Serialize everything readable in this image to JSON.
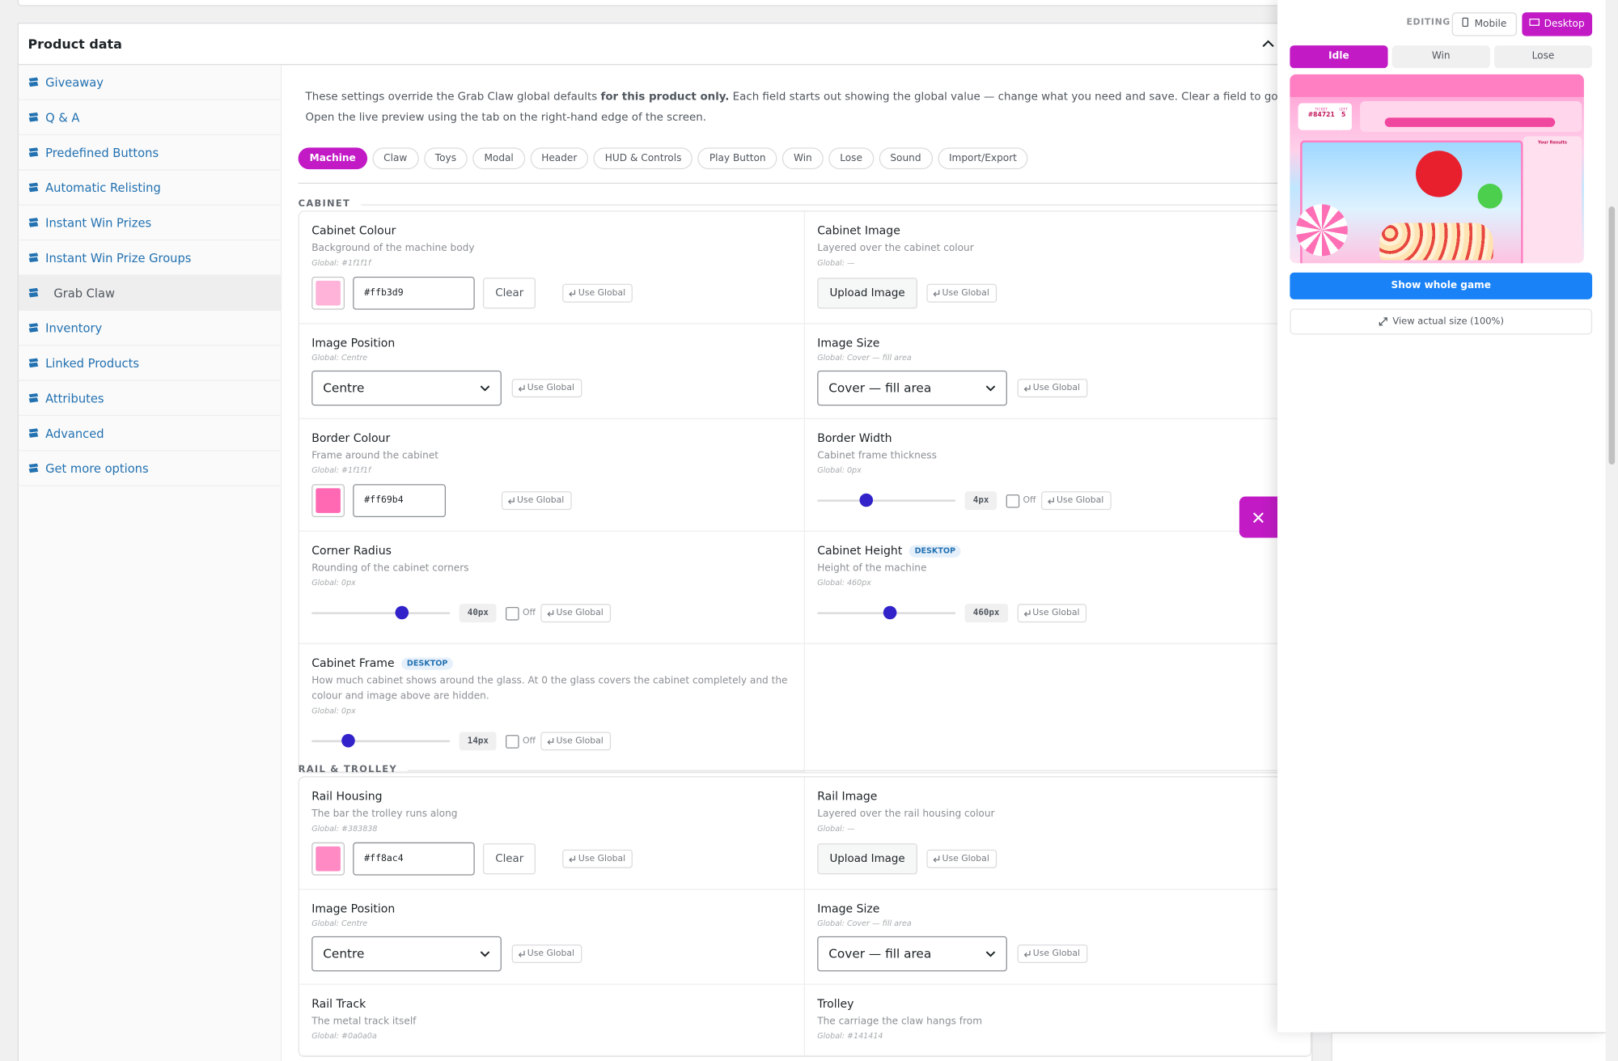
{
  "panel": {
    "title": "Product data"
  },
  "sidebar": {
    "items": [
      "Giveaway",
      "Q & A",
      "Predefined Buttons",
      "Automatic Relisting",
      "Instant Win Prizes",
      "Instant Win Prize Groups",
      "Grab Claw",
      "Inventory",
      "Linked Products",
      "Attributes",
      "Advanced",
      "Get more options"
    ],
    "active": 6
  },
  "intro": {
    "before": "These settings override the Grab Claw global defaults ",
    "bold": "for this product only.",
    "after": " Each field starts out showing the global value — change what you need and save. Clear a field to go back to inheriting the global setting.",
    "line2": "Open the live preview using the tab on the right-hand edge of the screen."
  },
  "tabs": {
    "items": [
      "Machine",
      "Claw",
      "Toys",
      "Modal",
      "Header",
      "HUD & Controls",
      "Play Button",
      "Win",
      "Lose",
      "Sound",
      "Import/Export"
    ],
    "active": 0
  },
  "ui": {
    "use_global": "Use Global",
    "clear": "Clear",
    "upload": "Upload Image",
    "off": "Off"
  },
  "sections": [
    {
      "title": "CABINET",
      "fields": [
        {
          "label": "Cabinet Colour",
          "description": "Background of the machine body",
          "global": "Global: #1f1f1f",
          "control": {
            "kind": "color",
            "value": "#ffb3d9",
            "clear": true
          }
        },
        {
          "label": "Cabinet Image",
          "description": "Layered over the cabinet colour",
          "global": "Global: —",
          "control": {
            "kind": "image"
          }
        },
        {
          "label": "Image Position",
          "global": "Global: Centre",
          "control": {
            "kind": "select",
            "value": "Centre"
          }
        },
        {
          "label": "Image Size",
          "global": "Global: Cover — fill area",
          "control": {
            "kind": "select",
            "value": "Cover — fill area"
          }
        },
        {
          "label": "Border Colour",
          "description": "Frame around the cabinet",
          "global": "Global: #1f1f1f",
          "control": {
            "kind": "color",
            "value": "#ff69b4",
            "clear": false
          }
        },
        {
          "label": "Border Width",
          "description": "Cabinet frame thickness",
          "global": "Global: 0px",
          "control": {
            "kind": "range",
            "value": "4px",
            "off": true
          }
        },
        {
          "label": "Corner Radius",
          "description": "Rounding of the cabinet corners",
          "global": "Global: 0px",
          "control": {
            "kind": "range",
            "value": "40px",
            "off": true
          }
        },
        {
          "label": "Cabinet Height",
          "badge": "DESKTOP",
          "description": "Height of the machine",
          "global": "Global: 460px",
          "control": {
            "kind": "range",
            "value": "460px",
            "off": false
          }
        },
        {
          "label": "Cabinet Frame",
          "badge": "DESKTOP",
          "description": "How much cabinet shows around the glass. At 0 the glass covers the cabinet completely and the colour and image above are hidden.",
          "global": "Global: 0px",
          "control": {
            "kind": "range",
            "value": "14px",
            "off": true
          }
        }
      ]
    },
    {
      "title": "RAIL & TROLLEY",
      "fields": [
        {
          "label": "Rail Housing",
          "description": "The bar the trolley runs along",
          "global": "Global: #383838",
          "control": {
            "kind": "color",
            "value": "#ff8ac4",
            "clear": true
          }
        },
        {
          "label": "Rail Image",
          "description": "Layered over the rail housing colour",
          "global": "Global: —",
          "control": {
            "kind": "image"
          }
        },
        {
          "label": "Image Position",
          "global": "Global: Centre",
          "control": {
            "kind": "select",
            "value": "Centre"
          }
        },
        {
          "label": "Image Size",
          "global": "Global: Cover — fill area",
          "control": {
            "kind": "select",
            "value": "Cover — fill area"
          }
        },
        {
          "label": "Rail Track",
          "description": "The metal track itself",
          "global": "Global: #0a0a0a"
        },
        {
          "label": "Trolley",
          "description": "The carriage the claw hangs from",
          "global": "Global: #141414"
        }
      ]
    }
  ],
  "preview": {
    "editing": "EDITING",
    "devices": [
      "Mobile",
      "Desktop"
    ],
    "active_device": 1,
    "states": [
      "Idle",
      "Win",
      "Lose"
    ],
    "active_state": 0,
    "game": {
      "ticket_label": "TICKET",
      "ticket": "#84721",
      "left_label": "LEFT",
      "left": "5",
      "results": "Your Results"
    },
    "show_button": "Show whole game",
    "actual_size": "View actual size (100%)"
  }
}
